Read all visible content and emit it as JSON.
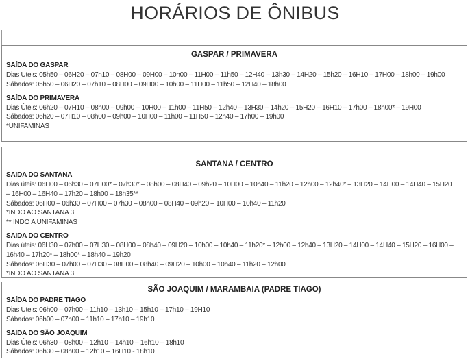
{
  "title": "HORÁRIOS DE ÔNIBUS",
  "sections": [
    {
      "title": "GASPAR / PRIMAVERA",
      "departures": [
        {
          "label": "SAÍDA DO GASPAR",
          "lines": [
            "Dias Úteis: 05h50 – 06H20 – 07h10 – 08H00 – 09H00 – 10h00 – 11H00 – 11h50 – 12H40 – 13h30 – 14H20 – 15h20 – 16H10 – 17H00 – 18h00 – 19h00",
            "Sábados: 05h50 – 06H20 – 07h10 – 08H00 – 09H00 – 10h00 – 11H00 – 11h50 – 12H40 – 18h00"
          ],
          "notes": []
        },
        {
          "label": "SAÍDA DO PRIMAVERA",
          "lines": [
            "Dias Úteis: 06h20 – 07H10 – 08h00 – 09h00 – 10H00 – 11h00 – 11H50 – 12h40 – 13H30 – 14h20 – 15H20 – 16H10 – 17h00 – 18h00* – 19H00",
            "Sábados: 06h20 – 07H10 – 08h00 – 09h00 – 10H00 – 11h00 – 11H50 – 12h40 – 17h00 – 19h00"
          ],
          "notes": [
            "*UNIFAMINAS"
          ]
        }
      ]
    },
    {
      "title": "SANTANA / CENTRO",
      "departures": [
        {
          "label": "SAÍDA DO SANTANA",
          "lines": [
            "Dias úteis: 06H00 – 06h30 – 07H00* – 07h30* – 08h00 – 08H40 – 09h20 – 10H00 – 10h40 – 11h20 – 12h00 – 12h40* – 13H20 – 14H00 – 14H40 – 15H20 – 16H00 – 16H40 – 17h20 – 18h00 – 18h35**",
            "Sábados: 06H00 – 06h30 – 07H00 – 07h30 – 08h00 – 08H40 – 09h20 – 10H00 – 10h40 – 11h20"
          ],
          "notes": [
            "*INDO AO SANTANA 3",
            "** INDO A UNIFAMINAS"
          ]
        },
        {
          "label": "SAÍDA DO CENTRO",
          "lines": [
            "Dias úteis: 06H30 – 07h00 – 07H30 – 08H00 – 08h40 – 09H20 – 10h00 – 10h40 – 11h20* – 12h00 – 12h40 – 13H20 – 14H00 – 14H40 – 15H20 – 16H00 – 16h40 – 17h20* – 18h00* – 18h40 – 19h20",
            "Sábados: 06H30 – 07h00 – 07H30 – 08H00 – 08h40 – 09H20 – 10h00 – 10h40 – 11h20 – 12h00"
          ],
          "notes": [
            "*INDO AO SANTANA 3"
          ]
        }
      ]
    },
    {
      "title": "SÃO JOAQUIM / MARAMBAIA (PADRE TIAGO)",
      "departures": [
        {
          "label": "SAÍDA DO PADRE TIAGO",
          "lines": [
            "Dias Úteis: 06h00 – 07h00 – 11h10 – 13h10 – 15h10 – 17h10 – 19H10",
            "Sábados: 06h00 – 07h00 – 11h10 – 17h10 – 19h10"
          ],
          "notes": []
        },
        {
          "label": "SAÍDA DO SÃO JOAQUIM",
          "lines": [
            "Dias Úteis: 06h30 – 08h00 – 12h10 – 14h10 – 16h10 – 18h10",
            "Sábados: 06h30 – 08h00 – 12h10 – 16H10 - 18h10"
          ],
          "notes": []
        }
      ]
    }
  ]
}
